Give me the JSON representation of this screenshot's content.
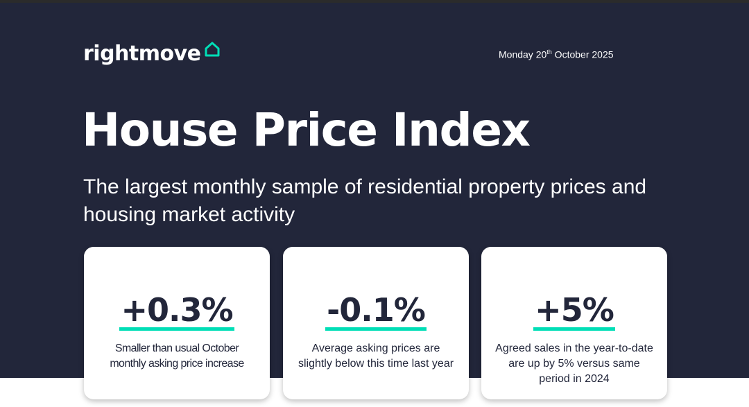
{
  "brand": {
    "name": "rightmove",
    "accent_color": "#00deb6",
    "icon": "house-outline-icon"
  },
  "header": {
    "date_prefix": "Monday 20",
    "date_ordinal": "th",
    "date_suffix": " October 2025"
  },
  "hero": {
    "title": "House Price Index",
    "subtitle": "The largest monthly sample of residential property prices and housing market activity",
    "background_color": "#22263a"
  },
  "stats": [
    {
      "value": "+0.3%",
      "description": "Smaller than usual October monthly asking price increase"
    },
    {
      "value": "-0.1%",
      "description": "Average asking prices are slightly below this time last year"
    },
    {
      "value": "+5%",
      "description": "Agreed sales in the year-to-date are up by 5% versus same period in 2024"
    }
  ]
}
